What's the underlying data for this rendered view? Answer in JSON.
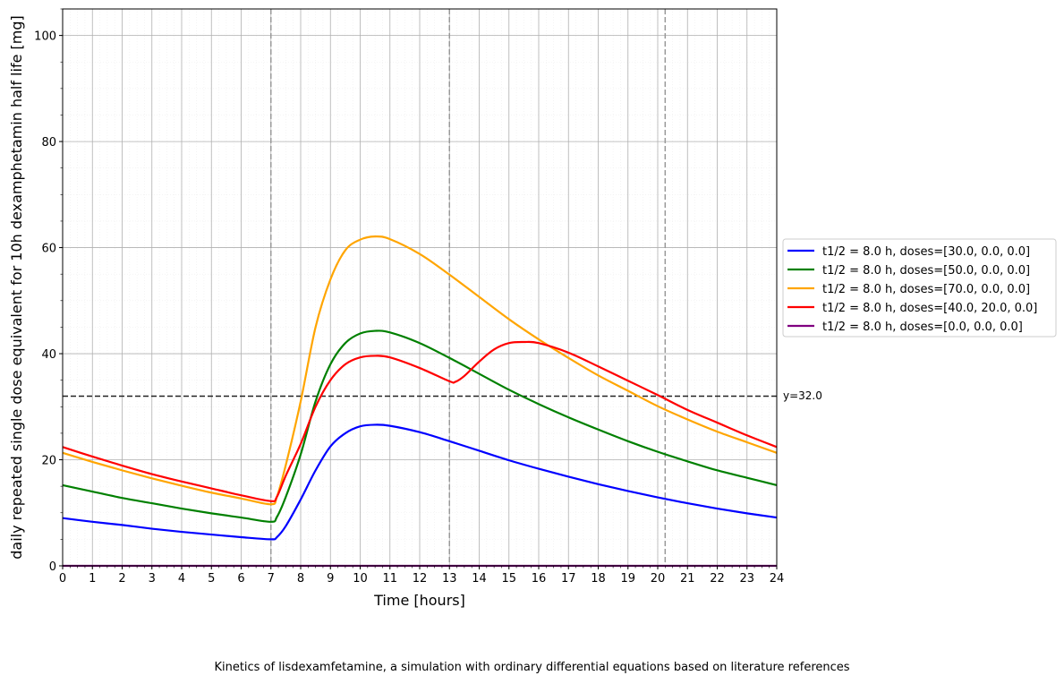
{
  "chart_data": {
    "type": "line",
    "title": "",
    "xlabel": "Time [hours]",
    "ylabel": "daily repeated single dose equivalent for 10h dexamphetamin half life [mg]",
    "xlim": [
      0,
      24
    ],
    "ylim": [
      0,
      105
    ],
    "xticks": [
      0,
      1,
      2,
      3,
      4,
      5,
      6,
      7,
      8,
      9,
      10,
      11,
      12,
      13,
      14,
      15,
      16,
      17,
      18,
      19,
      20,
      21,
      22,
      23,
      24
    ],
    "yticks": [
      0,
      20,
      40,
      60,
      80,
      100
    ],
    "grid": true,
    "legend_position": "outside-right",
    "vlines": [
      7,
      13,
      20.25
    ],
    "hline": {
      "y": 32.0,
      "label": "y=32.0"
    },
    "series": [
      {
        "name": "t1/2 = 8.0 h, doses=[30.0, 0.0, 0.0]",
        "color": "#0000ff",
        "x": [
          0,
          1,
          2,
          3,
          4,
          5,
          6,
          7,
          7.2,
          7.5,
          8,
          8.5,
          9,
          9.5,
          10,
          10.5,
          11,
          12,
          13,
          14,
          15,
          16,
          17,
          18,
          19,
          20,
          21,
          22,
          23,
          24
        ],
        "y": [
          9.0,
          8.3,
          7.7,
          7.0,
          6.4,
          5.9,
          5.4,
          5.0,
          5.4,
          7.5,
          12.5,
          18,
          22.5,
          25,
          26.3,
          26.6,
          26.4,
          25.2,
          23.5,
          21.7,
          19.9,
          18.3,
          16.8,
          15.4,
          14.1,
          12.9,
          11.8,
          10.8,
          9.9,
          9.1
        ]
      },
      {
        "name": "t1/2 = 8.0 h, doses=[50.0, 0.0, 0.0]",
        "color": "#008000",
        "x": [
          0,
          1,
          2,
          3,
          4,
          5,
          6,
          7,
          7.2,
          7.5,
          8,
          8.5,
          9,
          9.5,
          10,
          10.5,
          11,
          12,
          13,
          14,
          15,
          16,
          17,
          18,
          19,
          20,
          21,
          22,
          23,
          24
        ],
        "y": [
          15.2,
          14.0,
          12.8,
          11.8,
          10.8,
          9.9,
          9.1,
          8.3,
          9.2,
          13,
          21,
          31,
          38,
          42,
          43.8,
          44.3,
          44,
          42,
          39.2,
          36.2,
          33.2,
          30.5,
          28,
          25.7,
          23.5,
          21.5,
          19.7,
          18,
          16.6,
          15.2
        ]
      },
      {
        "name": "t1/2 = 8.0 h, doses=[70.0, 0.0, 0.0]",
        "color": "#ffa500",
        "x": [
          0,
          1,
          2,
          3,
          4,
          5,
          6,
          7,
          7.2,
          7.5,
          8,
          8.5,
          9,
          9.5,
          10,
          10.5,
          11,
          12,
          13,
          14,
          15,
          16,
          17,
          18,
          19,
          20,
          21,
          22,
          23,
          24
        ],
        "y": [
          21.3,
          19.6,
          18,
          16.5,
          15.1,
          13.8,
          12.7,
          11.6,
          13,
          19,
          31,
          45,
          54,
          59.5,
          61.5,
          62.1,
          61.6,
          58.8,
          54.9,
          50.7,
          46.5,
          42.7,
          39.2,
          35.9,
          33,
          30.1,
          27.6,
          25.3,
          23.3,
          21.3
        ]
      },
      {
        "name": "t1/2 = 8.0 h, doses=[40.0, 20.0, 0.0]",
        "color": "#ff0000",
        "x": [
          0,
          1,
          2,
          3,
          4,
          5,
          6,
          7,
          7.2,
          7.5,
          8,
          8.5,
          9,
          9.5,
          10,
          10.5,
          11,
          12,
          13,
          13.2,
          13.5,
          14,
          14.5,
          15,
          15.5,
          16,
          17,
          18,
          19,
          20,
          21,
          22,
          23,
          24
        ],
        "y": [
          22.4,
          20.6,
          18.9,
          17.3,
          15.9,
          14.6,
          13.3,
          12.2,
          13,
          17,
          23,
          30,
          35,
          38,
          39.3,
          39.6,
          39.3,
          37.3,
          34.8,
          34.7,
          35.8,
          38.5,
          40.8,
          42,
          42.2,
          42,
          40.2,
          37.6,
          34.9,
          32.2,
          29.4,
          27,
          24.6,
          22.4
        ]
      },
      {
        "name": "t1/2 = 8.0 h, doses=[0.0, 0.0, 0.0]",
        "color": "#800080",
        "x": [
          0,
          24
        ],
        "y": [
          0,
          0
        ]
      }
    ]
  },
  "caption": "Kinetics of lisdexamfetamine, a simulation with ordinary differential equations based on literature references"
}
